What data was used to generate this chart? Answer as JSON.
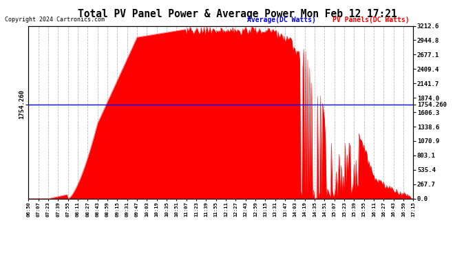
{
  "title": "Total PV Panel Power & Average Power Mon Feb 12 17:21",
  "copyright": "Copyright 2024 Cartronics.com",
  "legend_avg": "Average(DC Watts)",
  "legend_pv": "PV Panels(DC Watts)",
  "avg_value": 1754.26,
  "y_max": 3212.6,
  "y_min": 0.0,
  "y_ticks": [
    0.0,
    267.7,
    535.4,
    803.1,
    1070.9,
    1338.6,
    1606.3,
    1874.0,
    2141.7,
    2409.4,
    2677.1,
    2944.8,
    3212.6
  ],
  "x_labels": [
    "06:50",
    "07:07",
    "07:23",
    "07:39",
    "07:55",
    "08:11",
    "08:27",
    "08:43",
    "08:59",
    "09:15",
    "09:31",
    "09:47",
    "10:03",
    "10:19",
    "10:35",
    "10:51",
    "11:07",
    "11:23",
    "11:39",
    "11:55",
    "12:11",
    "12:27",
    "12:43",
    "12:59",
    "13:15",
    "13:31",
    "13:47",
    "14:03",
    "14:19",
    "14:35",
    "14:51",
    "15:07",
    "15:23",
    "15:39",
    "15:55",
    "16:11",
    "16:27",
    "16:43",
    "16:59",
    "17:15"
  ],
  "fill_color": "#FF0000",
  "avg_line_color": "#0000FF",
  "background_color": "#FFFFFF",
  "grid_color": "#AAAAAA",
  "title_color": "#000000",
  "avg_label_color": "#0000FF",
  "pv_label_color": "#FF0000"
}
